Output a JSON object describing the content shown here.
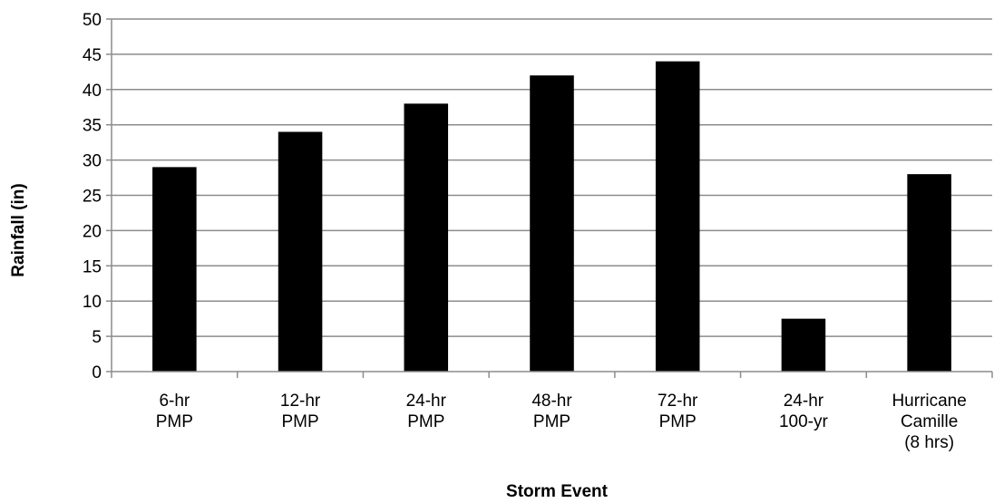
{
  "chart_data": {
    "type": "bar",
    "title": "",
    "xlabel": "Storm Event",
    "ylabel": "Rainfall (in)",
    "ylim": [
      0,
      50
    ],
    "ytick_step": 5,
    "grid": true,
    "legend": "none",
    "bar_color": "#000000",
    "grid_color": "#8c8c8c",
    "categories": [
      [
        "6-hr",
        "PMP"
      ],
      [
        "12-hr",
        "PMP"
      ],
      [
        "24-hr",
        "PMP"
      ],
      [
        "48-hr",
        "PMP"
      ],
      [
        "72-hr",
        "PMP"
      ],
      [
        "24-hr",
        "100-yr"
      ],
      [
        "Hurricane",
        "Camille",
        "(8 hrs)"
      ]
    ],
    "values": [
      29,
      34,
      38,
      42,
      44,
      7.5,
      28
    ]
  }
}
